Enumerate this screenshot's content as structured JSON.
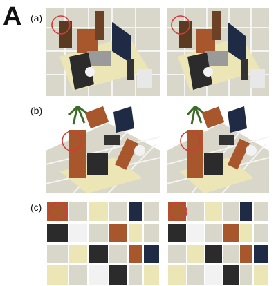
{
  "figure": {
    "main_label": "A",
    "rows": [
      {
        "label": "(a)"
      },
      {
        "label": "(b)"
      },
      {
        "label": "(c)"
      }
    ]
  },
  "colors": {
    "floor": "#d9d7c9",
    "grid": "#f4f4f4",
    "rug": "#ece6b6",
    "wood": "#a8572d",
    "sofa": "#2b2b2b",
    "highlight": "#d23a3a"
  }
}
